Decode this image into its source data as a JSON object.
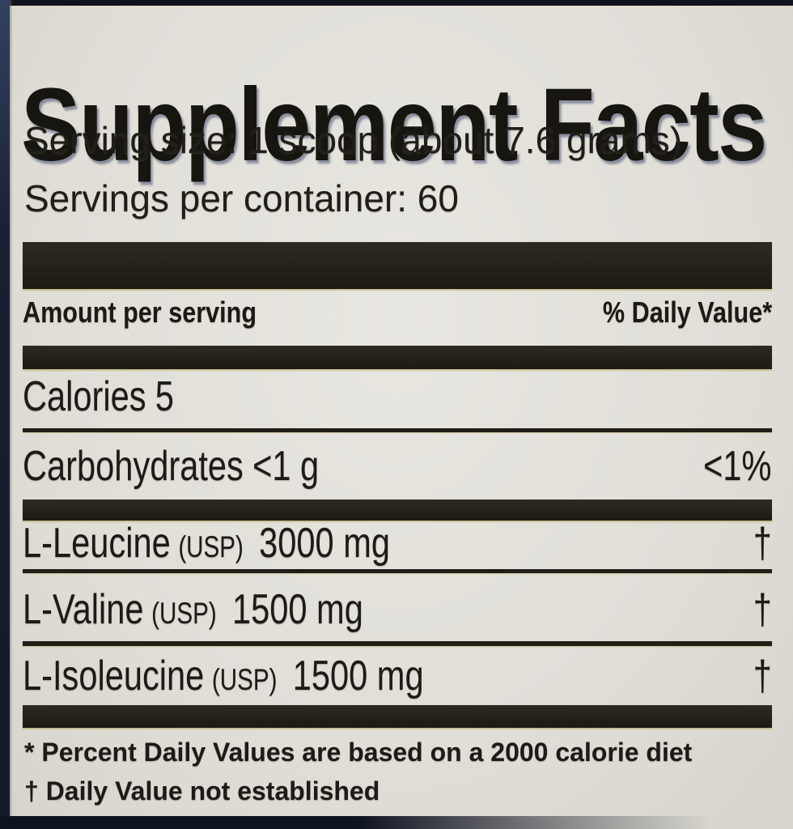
{
  "colors": {
    "background": "#e3e1db",
    "ink": "#1d1b17",
    "bar": "#241f17",
    "photo_edge_navy": "#1b2134"
  },
  "title": "Supplement Facts",
  "serving": {
    "size": "Serving size: 1 scoop (about 7.6 grams)",
    "per_container": "Servings per container: 60"
  },
  "columns": {
    "amount_per_serving": "Amount per serving",
    "daily_value": "% Daily Value*"
  },
  "rows": [
    {
      "name": "Calories",
      "usp": "",
      "amount": "5",
      "daily_value": ""
    },
    {
      "name": "Carbohydrates",
      "usp": "",
      "amount": "<1 g",
      "daily_value": "<1%"
    },
    {
      "name": "L-Leucine",
      "usp": "(USP)",
      "amount": "3000 mg",
      "daily_value": "†"
    },
    {
      "name": "L-Valine",
      "usp": "(USP)",
      "amount": "1500 mg",
      "daily_value": "†"
    },
    {
      "name": "L-Isoleucine",
      "usp": "(USP)",
      "amount": "1500 mg",
      "daily_value": "†"
    }
  ],
  "footnotes": [
    "* Percent Daily Values are based on a 2000 calorie diet",
    "† Daily Value not established"
  ]
}
